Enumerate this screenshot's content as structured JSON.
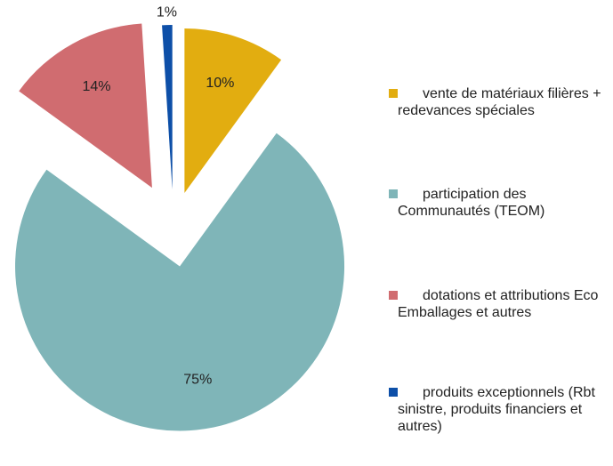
{
  "chart_data": {
    "type": "pie",
    "categories": [
      "vente de matériaux filières + redevances spéciales",
      "participation des Communautés (TEOM)",
      "dotations et attributions Eco Emballages et autres",
      "produits exceptionnels (Rbt sinistre, produits financiers et autres)"
    ],
    "values": [
      10,
      75,
      14,
      1
    ],
    "value_labels": [
      "10%",
      "75%",
      "14%",
      "1%"
    ],
    "colors": [
      "#e2ad10",
      "#7fb5b8",
      "#d06c70",
      "#0d4fa8"
    ],
    "legend": "right"
  }
}
